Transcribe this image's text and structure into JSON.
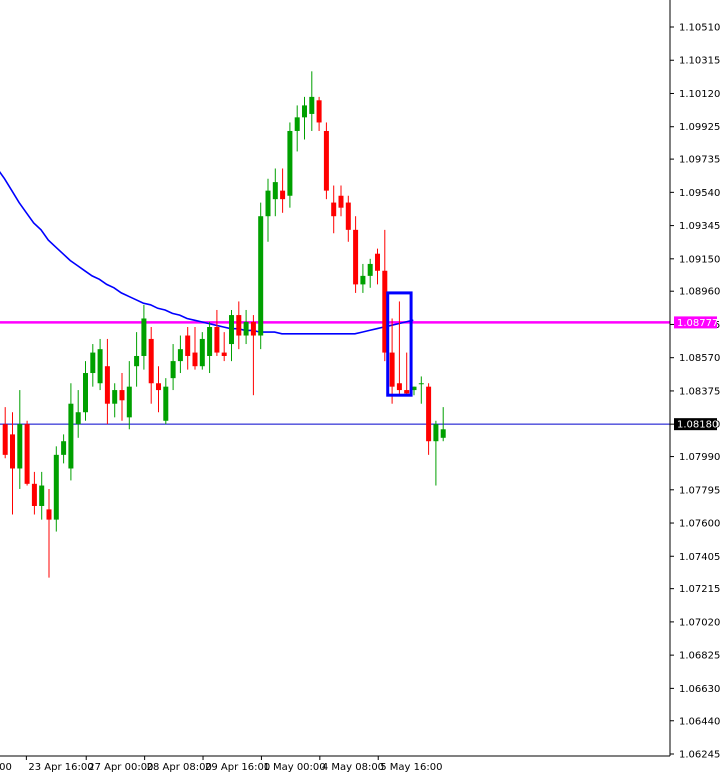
{
  "chart_data": {
    "type": "candlestick",
    "instrument_scale": "price",
    "y_axis": {
      "position": "right",
      "ylim": [
        1.0616,
        1.107
      ],
      "ticks": [
        "1.10510",
        "1.10315",
        "1.10120",
        "1.09925",
        "1.09735",
        "1.09540",
        "1.09345",
        "1.09150",
        "1.08960",
        "1.08765",
        "1.08570",
        "1.08375",
        "1.08180",
        "1.07990",
        "1.07795",
        "1.07600",
        "1.07405",
        "1.07215",
        "1.07020",
        "1.06825",
        "1.06630",
        "1.06440",
        "1.06245"
      ]
    },
    "x_axis": {
      "tick_labels": [
        "00",
        "23 Apr 16:00",
        "27 Apr 00:00",
        "28 Apr 08:00",
        "29 Apr 16:00",
        "1 May 00:00",
        "4 May 08:00",
        "5 May 16:00"
      ],
      "tick_index": [
        -1.1,
        2.9,
        11.1,
        19.1,
        27.1,
        35.1,
        43.1,
        51.1
      ]
    },
    "candles": [
      [
        1.0818,
        1.0828,
        1.0798,
        1.08
      ],
      [
        1.0812,
        1.0825,
        1.0765,
        1.0792
      ],
      [
        1.0792,
        1.0838,
        1.078,
        1.0818
      ],
      [
        1.0818,
        1.082,
        1.0782,
        1.0783
      ],
      [
        1.0783,
        1.079,
        1.0765,
        1.077
      ],
      [
        1.077,
        1.079,
        1.0762,
        1.0782
      ],
      [
        1.0768,
        1.078,
        1.0728,
        1.0762
      ],
      [
        1.0762,
        1.0805,
        1.0755,
        1.08
      ],
      [
        1.08,
        1.0812,
        1.0795,
        1.0808
      ],
      [
        1.0792,
        1.0842,
        1.0785,
        1.083
      ],
      [
        1.0818,
        1.0838,
        1.081,
        1.0825
      ],
      [
        1.0825,
        1.0855,
        1.082,
        1.0848
      ],
      [
        1.0848,
        1.0865,
        1.084,
        1.086
      ],
      [
        1.0842,
        1.0868,
        1.0838,
        1.0862
      ],
      [
        1.0852,
        1.0868,
        1.0818,
        1.083
      ],
      [
        1.083,
        1.0842,
        1.0822,
        1.0838
      ],
      [
        1.0838,
        1.0848,
        1.082,
        1.0832
      ],
      [
        1.0822,
        1.0855,
        1.0815,
        1.084
      ],
      [
        1.0852,
        1.0872,
        1.084,
        1.0858
      ],
      [
        1.0858,
        1.0888,
        1.085,
        1.088
      ],
      [
        1.0868,
        1.0875,
        1.083,
        1.0842
      ],
      [
        1.0842,
        1.0852,
        1.0825,
        1.0838
      ],
      [
        1.082,
        1.0845,
        1.0818,
        1.084
      ],
      [
        1.0845,
        1.0865,
        1.0838,
        1.0855
      ],
      [
        1.0855,
        1.087,
        1.0848,
        1.0862
      ],
      [
        1.087,
        1.0875,
        1.085,
        1.0858
      ],
      [
        1.086,
        1.0875,
        1.085,
        1.0852
      ],
      [
        1.0852,
        1.0872,
        1.085,
        1.0868
      ],
      [
        1.0858,
        1.0878,
        1.0848,
        1.0875
      ],
      [
        1.0875,
        1.0885,
        1.0858,
        1.086
      ],
      [
        1.086,
        1.0872,
        1.0855,
        1.0858
      ],
      [
        1.0865,
        1.0885,
        1.0855,
        1.0882
      ],
      [
        1.0882,
        1.089,
        1.0862,
        1.087
      ],
      [
        1.087,
        1.0885,
        1.0865,
        1.0878
      ],
      [
        1.0878,
        1.0882,
        1.0835,
        1.087
      ],
      [
        1.087,
        1.0948,
        1.0862,
        1.094
      ],
      [
        1.094,
        1.0962,
        1.0925,
        1.0955
      ],
      [
        1.095,
        1.0968,
        1.094,
        1.096
      ],
      [
        1.0955,
        1.0968,
        1.0942,
        1.095
      ],
      [
        1.0952,
        1.0995,
        1.0945,
        1.099
      ],
      [
        1.099,
        1.1005,
        1.0978,
        1.0998
      ],
      [
        1.0998,
        1.101,
        1.0985,
        1.1005
      ],
      [
        1.1,
        1.1025,
        1.099,
        1.101
      ],
      [
        1.1008,
        1.101,
        1.099,
        1.0995
      ],
      [
        1.099,
        1.0995,
        1.095,
        1.0955
      ],
      [
        1.0948,
        1.0958,
        1.093,
        1.094
      ],
      [
        1.0952,
        1.0958,
        1.094,
        1.0945
      ],
      [
        1.0948,
        1.0952,
        1.0925,
        1.0932
      ],
      [
        1.0932,
        1.094,
        1.0895,
        1.09
      ],
      [
        1.09,
        1.0912,
        1.0895,
        1.0905
      ],
      [
        1.0905,
        1.0915,
        1.0898,
        1.0912
      ],
      [
        1.0918,
        1.0921,
        1.09,
        1.0908
      ],
      [
        1.0908,
        1.0932,
        1.0855,
        1.086
      ],
      [
        1.086,
        1.088,
        1.083,
        1.084
      ],
      [
        1.0842,
        1.089,
        1.0835,
        1.0838
      ],
      [
        1.0838,
        1.086,
        1.0835,
        1.0836
      ],
      [
        1.0838,
        1.084,
        1.0835,
        1.084
      ],
      [
        1.0842,
        1.0846,
        1.083,
        1.0842
      ],
      [
        1.084,
        1.0842,
        1.08,
        1.0808
      ],
      [
        1.0808,
        1.082,
        1.0782,
        1.0818
      ],
      [
        1.081,
        1.0828,
        1.0808,
        1.0815
      ]
    ],
    "moving_average": {
      "color": "#0000ff",
      "start_index": -1.1,
      "points": [
        1.0968,
        1.0962,
        1.0955,
        1.0948,
        1.0942,
        1.0936,
        1.0932,
        1.0926,
        1.0922,
        1.0918,
        1.0914,
        1.0911,
        1.0908,
        1.0905,
        1.0903,
        1.09,
        1.0898,
        1.0895,
        1.0893,
        1.0891,
        1.0889,
        1.0888,
        1.0886,
        1.0885,
        1.0883,
        1.0882,
        1.088,
        1.0879,
        1.0878,
        1.0877,
        1.0876,
        1.0875,
        1.0874,
        1.0874,
        1.0873,
        1.0873,
        1.0872,
        1.0872,
        1.0872,
        1.0871,
        1.0871,
        1.0871,
        1.0871,
        1.0871,
        1.0871,
        1.0871,
        1.0871,
        1.0871,
        1.0871,
        1.0871,
        1.0872,
        1.0873,
        1.0874,
        1.0875,
        1.0876,
        1.0877,
        1.0878,
        1.0879
      ]
    },
    "horizontal_lines": [
      {
        "value": 1.08777,
        "label": "1.08777",
        "color": "#ff00ff",
        "label_bg": "#ff00ff",
        "label_fg": "#ffffff"
      },
      {
        "value": 1.0818,
        "label": "1.08180",
        "color": "#0000cc",
        "label_bg": "#000000",
        "label_fg": "#ffffff"
      }
    ],
    "highlight_box": {
      "x_range": [
        52.4,
        55.6
      ],
      "y_range": [
        1.0835,
        1.0895
      ],
      "color": "#0000ff"
    },
    "colors": {
      "bull": "#00a000",
      "bear": "#ff0000",
      "wick_bull": "#00a000",
      "wick_bear": "#ff0000",
      "axis": "#000000"
    }
  }
}
